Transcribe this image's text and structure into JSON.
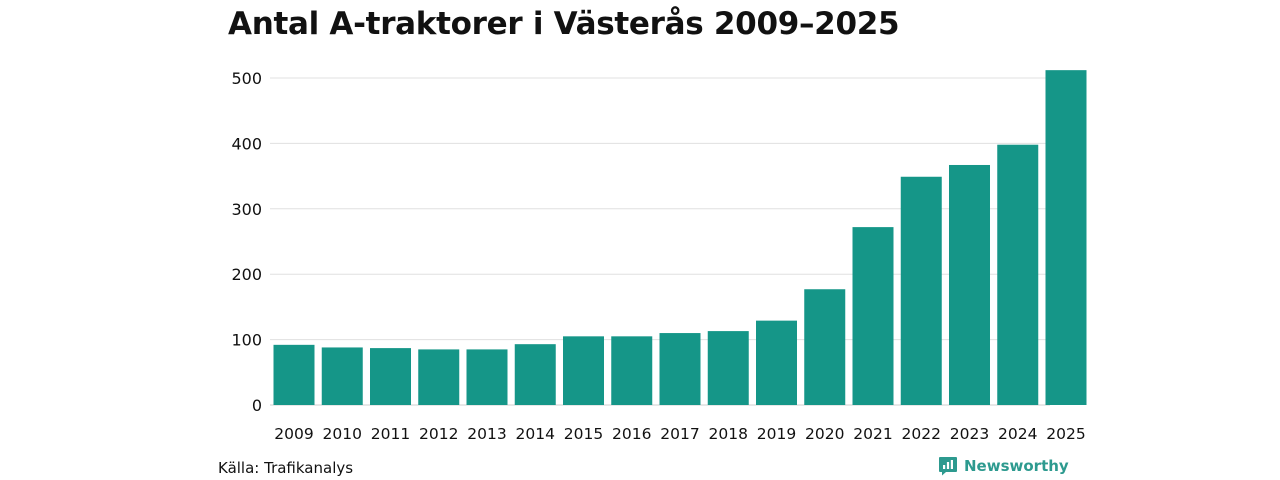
{
  "chart_data": {
    "type": "bar",
    "title": "Antal A-traktorer i Västerås 2009–2025",
    "categories": [
      "2009",
      "2010",
      "2011",
      "2012",
      "2013",
      "2014",
      "2015",
      "2016",
      "2017",
      "2018",
      "2019",
      "2020",
      "2021",
      "2022",
      "2023",
      "2024",
      "2025"
    ],
    "values": [
      92,
      88,
      87,
      85,
      85,
      93,
      105,
      105,
      110,
      113,
      129,
      177,
      272,
      349,
      367,
      398,
      512
    ],
    "ylim": [
      0,
      520
    ],
    "yticks": [
      0,
      100,
      200,
      300,
      400,
      500
    ],
    "xlabel": "",
    "ylabel": "",
    "grid": true,
    "bar_color": "#159688"
  },
  "footer": {
    "source": "Källa: Trafikanalys",
    "brand": "Newsworthy",
    "brand_icon": "newsworthy-logo-icon",
    "brand_color": "#2d9a8f"
  }
}
